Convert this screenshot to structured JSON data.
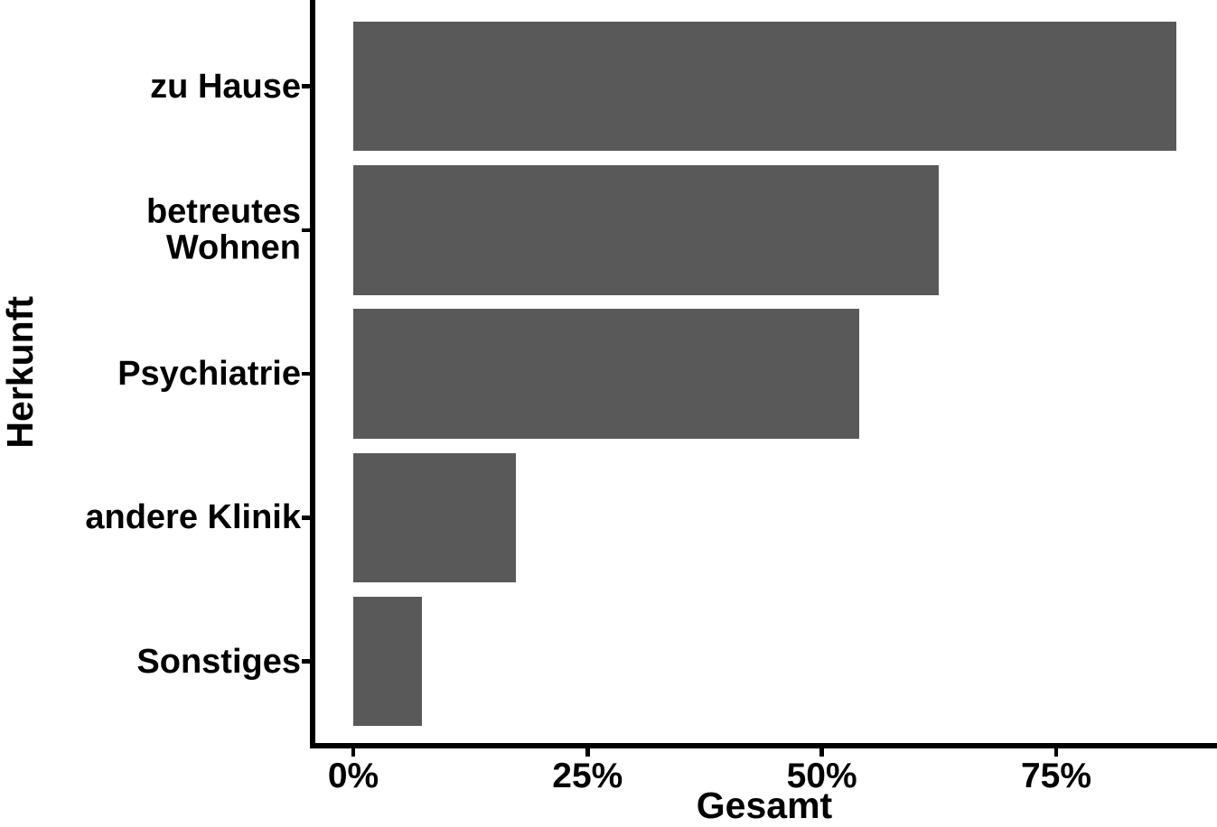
{
  "chart_data": {
    "type": "bar",
    "orientation": "horizontal",
    "xlabel": "Gesamt",
    "ylabel": "Herkunft",
    "categories": [
      "zu Hause",
      "betreutes Wohnen",
      "Psychiatrie",
      "andere Klinik",
      "Sonstiges"
    ],
    "values": [
      87.8,
      62.5,
      54.0,
      17.4,
      7.3
    ],
    "value_unit": "%",
    "x_ticks": [
      {
        "value": 0,
        "label": "0%"
      },
      {
        "value": 25,
        "label": "25%"
      },
      {
        "value": 50,
        "label": "50%"
      },
      {
        "value": 75,
        "label": "75%"
      }
    ],
    "xlim": [
      -4.5,
      92.2
    ],
    "grid": false,
    "legend": false,
    "bar_color": "#595959",
    "axis_color": "#000000",
    "text_color": "#000000"
  }
}
